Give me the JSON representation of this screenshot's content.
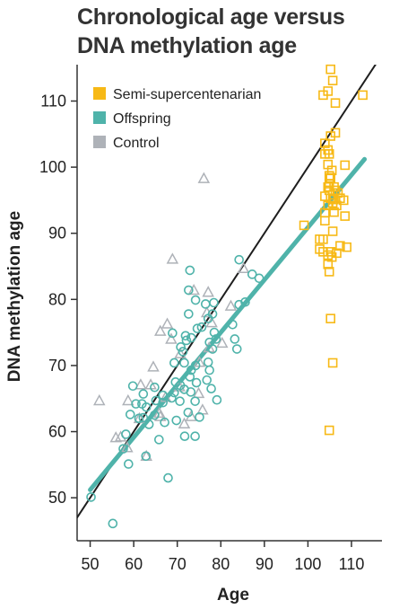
{
  "chart_data": {
    "type": "scatter",
    "title_lines": [
      "Chronological age versus",
      "DNA methylation age"
    ],
    "xlabel": "Age",
    "ylabel": "DNA methylation age",
    "xlim": [
      47,
      117
    ],
    "ylim": [
      43.5,
      115.5
    ],
    "xticks": [
      50,
      60,
      70,
      80,
      90,
      100,
      110
    ],
    "yticks": [
      50,
      60,
      70,
      80,
      90,
      100,
      110
    ],
    "legend_position": "top-left",
    "series": [
      {
        "name": "Semi-supercentenarian",
        "marker": "square",
        "color": "#f7b916",
        "points": [
          [
            105.2,
            114.8
          ],
          [
            105.7,
            113.1
          ],
          [
            104.6,
            111.5
          ],
          [
            103.5,
            110.9
          ],
          [
            112.6,
            110.9
          ],
          [
            106.3,
            109.7
          ],
          [
            106.3,
            105.2
          ],
          [
            105.2,
            104.7
          ],
          [
            103.9,
            103.6
          ],
          [
            104.6,
            102.6
          ],
          [
            103.9,
            102.0
          ],
          [
            104.9,
            102.0
          ],
          [
            104.6,
            100.4
          ],
          [
            108.5,
            100.3
          ],
          [
            105.5,
            99.5
          ],
          [
            104.9,
            98.7
          ],
          [
            105.2,
            98.4
          ],
          [
            104.9,
            97.5
          ],
          [
            104.6,
            97.0
          ],
          [
            106.0,
            97.0
          ],
          [
            104.9,
            96.5
          ],
          [
            106.3,
            96.5
          ],
          [
            106.9,
            96.1
          ],
          [
            105.7,
            95.8
          ],
          [
            103.9,
            95.6
          ],
          [
            105.2,
            95.3
          ],
          [
            106.0,
            95.1
          ],
          [
            107.4,
            95.3
          ],
          [
            108.2,
            95.0
          ],
          [
            105.7,
            94.6
          ],
          [
            104.6,
            94.2
          ],
          [
            106.6,
            94.2
          ],
          [
            103.9,
            93.1
          ],
          [
            106.0,
            93.2
          ],
          [
            108.5,
            92.6
          ],
          [
            103.9,
            91.9
          ],
          [
            99.1,
            91.2
          ],
          [
            105.7,
            90.3
          ],
          [
            102.7,
            89.1
          ],
          [
            103.5,
            89.1
          ],
          [
            107.4,
            88.1
          ],
          [
            102.7,
            87.6
          ],
          [
            108.9,
            87.9
          ],
          [
            103.5,
            87.2
          ],
          [
            105.2,
            87.2
          ],
          [
            106.6,
            87.0
          ],
          [
            104.6,
            86.7
          ],
          [
            105.5,
            86.4
          ],
          [
            104.6,
            85.3
          ],
          [
            104.9,
            84.2
          ],
          [
            105.2,
            77.1
          ],
          [
            105.7,
            70.4
          ],
          [
            104.9,
            60.2
          ]
        ]
      },
      {
        "name": "Offspring",
        "marker": "circle",
        "color": "#4fb3aa",
        "points": [
          [
            84.2,
            86.0
          ],
          [
            72.9,
            84.4
          ],
          [
            87.2,
            83.8
          ],
          [
            88.8,
            83.2
          ],
          [
            72.6,
            81.4
          ],
          [
            84.2,
            79.2
          ],
          [
            74.2,
            79.9
          ],
          [
            78.4,
            79.5
          ],
          [
            85.6,
            79.6
          ],
          [
            76.5,
            79.3
          ],
          [
            78.1,
            77.8
          ],
          [
            72.6,
            77.8
          ],
          [
            77.1,
            77.1
          ],
          [
            82.7,
            76.2
          ],
          [
            74.6,
            75.6
          ],
          [
            75.6,
            75.8
          ],
          [
            78.5,
            75.0
          ],
          [
            68.9,
            74.9
          ],
          [
            71.9,
            74.5
          ],
          [
            73.2,
            74.2
          ],
          [
            78.9,
            74.0
          ],
          [
            83.2,
            74.0
          ],
          [
            72.1,
            73.8
          ],
          [
            77.4,
            73.5
          ],
          [
            70.8,
            72.8
          ],
          [
            71.3,
            72.1
          ],
          [
            83.7,
            72.5
          ],
          [
            78.1,
            72.5
          ],
          [
            77.1,
            70.5
          ],
          [
            69.3,
            70.4
          ],
          [
            71.6,
            70.4
          ],
          [
            74.2,
            70.0
          ],
          [
            73.2,
            69.3
          ],
          [
            77.4,
            69.3
          ],
          [
            72.9,
            68.3
          ],
          [
            76.8,
            67.8
          ],
          [
            74.4,
            67.4
          ],
          [
            69.6,
            67.5
          ],
          [
            70.7,
            67.0
          ],
          [
            59.8,
            66.9
          ],
          [
            64.8,
            66.7
          ],
          [
            71.6,
            66.4
          ],
          [
            73.1,
            66.0
          ],
          [
            77.8,
            66.5
          ],
          [
            69.3,
            65.9
          ],
          [
            62.2,
            65.7
          ],
          [
            65.1,
            64.7
          ],
          [
            68.7,
            65.1
          ],
          [
            66.7,
            65.5
          ],
          [
            70.6,
            64.6
          ],
          [
            74.1,
            64.6
          ],
          [
            79.1,
            64.8
          ],
          [
            66.7,
            64.4
          ],
          [
            62.9,
            63.7
          ],
          [
            61.9,
            64.2
          ],
          [
            72.5,
            62.9
          ],
          [
            64.8,
            62.5
          ],
          [
            62.2,
            62.1
          ],
          [
            75.1,
            62.2
          ],
          [
            69.8,
            61.7
          ],
          [
            59.2,
            62.6
          ],
          [
            61.2,
            62.0
          ],
          [
            67.1,
            61.4
          ],
          [
            63.5,
            61.1
          ],
          [
            58.2,
            59.6
          ],
          [
            65.8,
            58.8
          ],
          [
            71.7,
            59.3
          ],
          [
            74.1,
            59.3
          ],
          [
            57.6,
            57.4
          ],
          [
            62.8,
            56.3
          ],
          [
            58.8,
            55.1
          ],
          [
            67.9,
            53.0
          ],
          [
            50.2,
            50.1
          ],
          [
            55.2,
            46.1
          ],
          [
            60.5,
            64.2
          ]
        ]
      },
      {
        "name": "Control",
        "marker": "triangle",
        "color": "#aeb2b8",
        "points": [
          [
            76.1,
            98.3
          ],
          [
            68.9,
            86.1
          ],
          [
            85.2,
            84.7
          ],
          [
            73.8,
            81.4
          ],
          [
            77.1,
            81.1
          ],
          [
            82.3,
            79.0
          ],
          [
            67.7,
            76.3
          ],
          [
            76.8,
            78.0
          ],
          [
            77.9,
            76.5
          ],
          [
            66.1,
            75.2
          ],
          [
            68.6,
            74.0
          ],
          [
            80.3,
            73.4
          ],
          [
            70.7,
            71.8
          ],
          [
            77.3,
            72.7
          ],
          [
            75.1,
            70.5
          ],
          [
            64.5,
            69.8
          ],
          [
            61.6,
            67.1
          ],
          [
            63.9,
            67.1
          ],
          [
            70.5,
            66.8
          ],
          [
            74.9,
            65.8
          ],
          [
            67.3,
            65.2
          ],
          [
            58.7,
            64.7
          ],
          [
            52.1,
            64.7
          ],
          [
            75.8,
            63.3
          ],
          [
            65.9,
            62.8
          ],
          [
            61.3,
            62.0
          ],
          [
            66.1,
            62.3
          ],
          [
            73.2,
            62.3
          ],
          [
            71.6,
            61.2
          ],
          [
            57.0,
            59.2
          ],
          [
            55.9,
            59.1
          ],
          [
            62.9,
            56.3
          ],
          [
            58.5,
            57.6
          ]
        ]
      }
    ],
    "fit_lines": [
      {
        "name": "identity",
        "color": "#1e1e1e",
        "from": [
          47,
          47
        ],
        "to": [
          117,
          117
        ]
      },
      {
        "name": "offspring_fit",
        "color": "#4fb3aa",
        "from": [
          50,
          51.2
        ],
        "to": [
          113,
          101.2
        ]
      }
    ]
  }
}
